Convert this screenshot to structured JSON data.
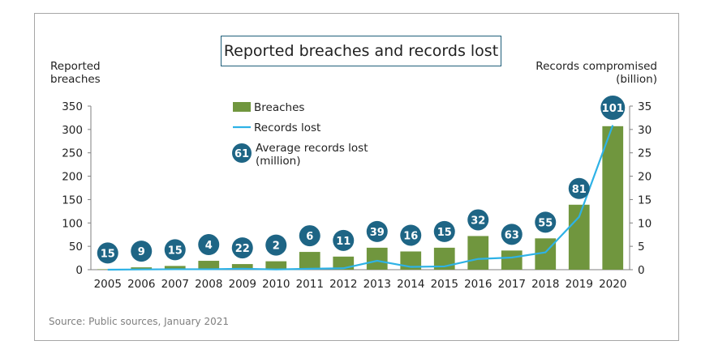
{
  "source": "Source: Public sources, January 2021",
  "colors": {
    "bar": "#70963e",
    "line": "#2eb2e6",
    "badge": "#1e6585",
    "frame": "#a6a6a6"
  },
  "chart_data": {
    "type": "bar",
    "title": "Reported breaches and records lost",
    "ylabel": "Reported breaches",
    "ylabel_right": "Records compromised (billion)",
    "ylim": [
      0,
      350
    ],
    "ylim_right": [
      0,
      35
    ],
    "yticks": [
      "0",
      "50",
      "100",
      "150",
      "200",
      "250",
      "300",
      "350"
    ],
    "yticks_right": [
      "0",
      "5",
      "10",
      "15",
      "20",
      "25",
      "30",
      "35"
    ],
    "categories": [
      "2005",
      "2006",
      "2007",
      "2008",
      "2009",
      "2010",
      "2011",
      "2012",
      "2013",
      "2014",
      "2015",
      "2016",
      "2017",
      "2018",
      "2019",
      "2020"
    ],
    "legend": {
      "position": "top-left"
    },
    "series": [
      {
        "name": "Breaches",
        "type": "bar",
        "axis": "left",
        "values": [
          1,
          5,
          8,
          19,
          12,
          18,
          38,
          28,
          47,
          39,
          47,
          72,
          41,
          67,
          139,
          307
        ]
      },
      {
        "name": "Records lost",
        "type": "line",
        "axis": "right",
        "values": [
          0.0,
          0.05,
          0.1,
          0.1,
          0.2,
          0.05,
          0.2,
          0.3,
          1.9,
          0.6,
          0.7,
          2.3,
          2.6,
          3.7,
          11.3,
          30.9
        ]
      },
      {
        "name": "Average records lost (million)",
        "type": "badge",
        "values": [
          "15",
          "9",
          "15",
          "4",
          "22",
          "2",
          "6",
          "11",
          "39",
          "16",
          "15",
          "32",
          "63",
          "55",
          "81",
          "101"
        ]
      }
    ],
    "legend_badge_sample": "61"
  }
}
